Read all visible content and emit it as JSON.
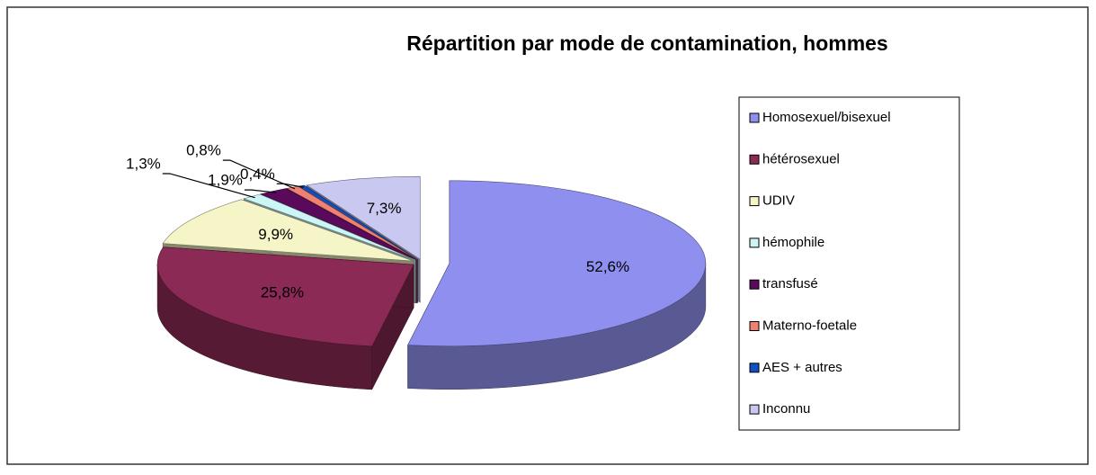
{
  "chart_data": {
    "type": "pie3d",
    "title": "Répartition par mode de contamination, hommes",
    "categories": [
      "Homosexuel/bisexuel",
      "hétérosexuel",
      "UDIV",
      "hémophile",
      "transfusé",
      "Materno-foetale",
      "AES + autres",
      "Inconnu"
    ],
    "values": [
      52.6,
      25.8,
      9.9,
      1.3,
      1.9,
      0.8,
      0.4,
      7.3
    ],
    "value_labels": [
      "52,6%",
      "25,8%",
      "9,9%",
      "1,3%",
      "1,9%",
      "0,8%",
      "0,4%",
      "7,3%"
    ],
    "colors": [
      "#8f8fef",
      "#8b2a55",
      "#f5f5c8",
      "#ccf5f5",
      "#5a0a5a",
      "#f08070",
      "#1050c0",
      "#c8c8f0"
    ],
    "legend": "right"
  }
}
